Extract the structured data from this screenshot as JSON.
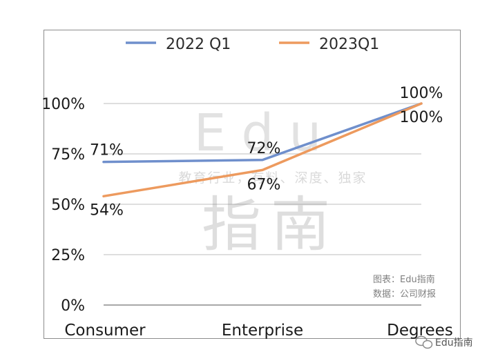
{
  "chart_data": {
    "type": "line",
    "categories": [
      "Consumer",
      "Enterprise",
      "Degrees"
    ],
    "series": [
      {
        "name": "2022 Q1",
        "color": "#6f8fcc",
        "values": [
          71,
          72,
          100
        ],
        "labels": [
          "71%",
          "72%",
          "100%"
        ]
      },
      {
        "name": "2023Q1",
        "color": "#ed9a5e",
        "values": [
          54,
          67,
          100
        ],
        "labels": [
          "54%",
          "67%",
          "100%"
        ]
      }
    ],
    "yticks": [
      "0%",
      "25%",
      "50%",
      "75%",
      "100%"
    ],
    "ylim": [
      0,
      100
    ],
    "grid": true,
    "legend": "top"
  },
  "source": {
    "line1": "图表：Edu指南",
    "line2": "数据：公司财报"
  },
  "watermark": {
    "brand": "Edu",
    "name": "指南",
    "tagline": "教育行业，有料、深度、独家",
    "wechat": "Edu指南"
  }
}
